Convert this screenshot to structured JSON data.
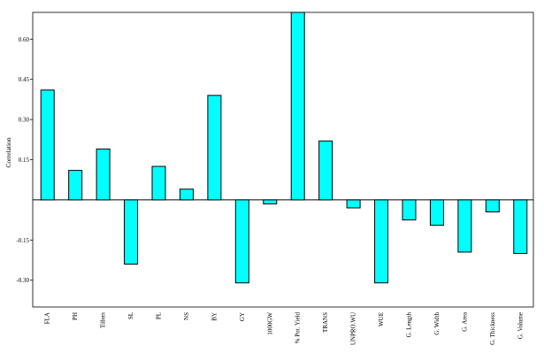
{
  "chart_data": {
    "type": "bar",
    "ylabel": "Correlation",
    "ylim": [
      -0.4,
      0.7
    ],
    "yticks": [
      -0.3,
      -0.15,
      0.15,
      0.3,
      0.45,
      0.6
    ],
    "ytick_labels": [
      "-0.30",
      "-0.15",
      "0.15",
      "0.30",
      "0.45",
      "0.60"
    ],
    "grid": false,
    "bar_color": "#00FFFF",
    "bar_edge_color": "#000000",
    "categories": [
      "FLA",
      "PH",
      "Tillers",
      "SL",
      "PL",
      "NS",
      "BY",
      "GY",
      "1000GW",
      "% Pot. Yield",
      "TRANS",
      "UNPRO.WU",
      "WUE",
      "G. Length",
      "G. Width",
      "G. Area",
      "G. Thickness",
      "G. Volume"
    ],
    "values": [
      0.41,
      0.11,
      0.19,
      -0.24,
      0.125,
      0.04,
      0.39,
      -0.31,
      -0.015,
      0.7,
      0.22,
      -0.03,
      -0.31,
      -0.075,
      -0.095,
      -0.195,
      -0.045,
      -0.2
    ]
  }
}
